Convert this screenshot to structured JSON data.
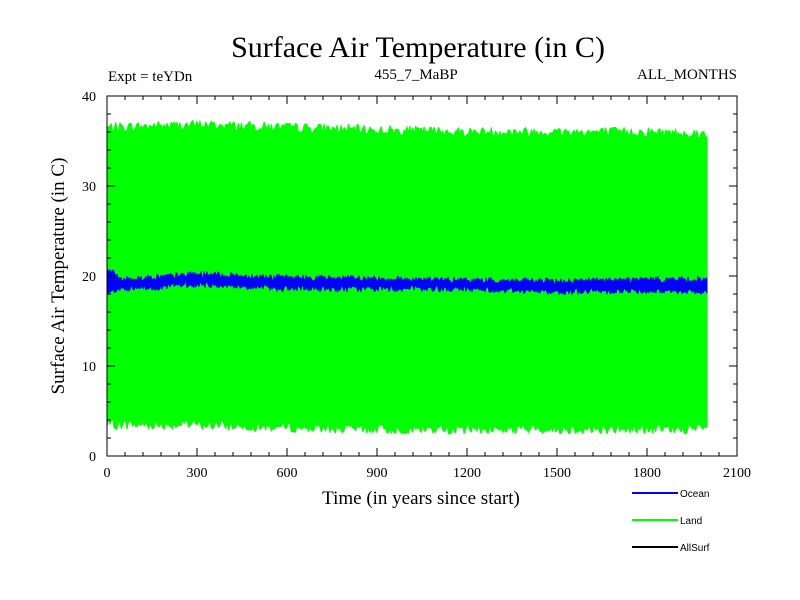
{
  "chart_data": {
    "type": "line",
    "title": "Surface Air Temperature (in C)",
    "subtitle_left": "Expt = teYDn",
    "subtitle_center": "455_7_MaBP",
    "subtitle_right": "ALL_MONTHS",
    "xlabel": "Time (in years since start)",
    "ylabel": "Surface Air Temperature (in C)",
    "xlim": [
      0,
      2100
    ],
    "ylim": [
      0,
      40
    ],
    "x_ticks": [
      0,
      300,
      600,
      900,
      1200,
      1500,
      1800,
      2100
    ],
    "y_ticks": [
      0,
      10,
      20,
      30,
      40
    ],
    "grid": false,
    "legend_position": "bottom-right",
    "x_range_of_data": [
      0,
      2000
    ],
    "series": [
      {
        "name": "Ocean",
        "color": "#0000ff",
        "description_values": "seasonal band",
        "approx_upper": [
          [
            0,
            20.8
          ],
          [
            50,
            19.6
          ],
          [
            300,
            20.2
          ],
          [
            600,
            19.8
          ],
          [
            900,
            19.7
          ],
          [
            1200,
            19.5
          ],
          [
            1500,
            19.4
          ],
          [
            1800,
            19.6
          ],
          [
            2000,
            19.6
          ]
        ],
        "approx_lower": [
          [
            0,
            18.2
          ],
          [
            50,
            18.5
          ],
          [
            300,
            19.1
          ],
          [
            600,
            18.6
          ],
          [
            900,
            18.6
          ],
          [
            1200,
            18.6
          ],
          [
            1500,
            18.3
          ],
          [
            1800,
            18.4
          ],
          [
            2000,
            18.3
          ]
        ]
      },
      {
        "name": "Land",
        "color": "#00ff00",
        "approx_upper": [
          [
            0,
            36.5
          ],
          [
            300,
            36.8
          ],
          [
            600,
            36.5
          ],
          [
            900,
            36.2
          ],
          [
            1200,
            36.0
          ],
          [
            1500,
            36.0
          ],
          [
            1800,
            36.0
          ],
          [
            2000,
            35.8
          ]
        ],
        "approx_lower": [
          [
            0,
            3.5
          ],
          [
            300,
            3.5
          ],
          [
            600,
            3.2
          ],
          [
            900,
            3.0
          ],
          [
            1200,
            3.0
          ],
          [
            1500,
            3.0
          ],
          [
            1800,
            3.0
          ],
          [
            2000,
            3.0
          ]
        ]
      },
      {
        "name": "AllSurf",
        "color": "#000000",
        "approx_upper": [],
        "approx_lower": []
      }
    ]
  }
}
